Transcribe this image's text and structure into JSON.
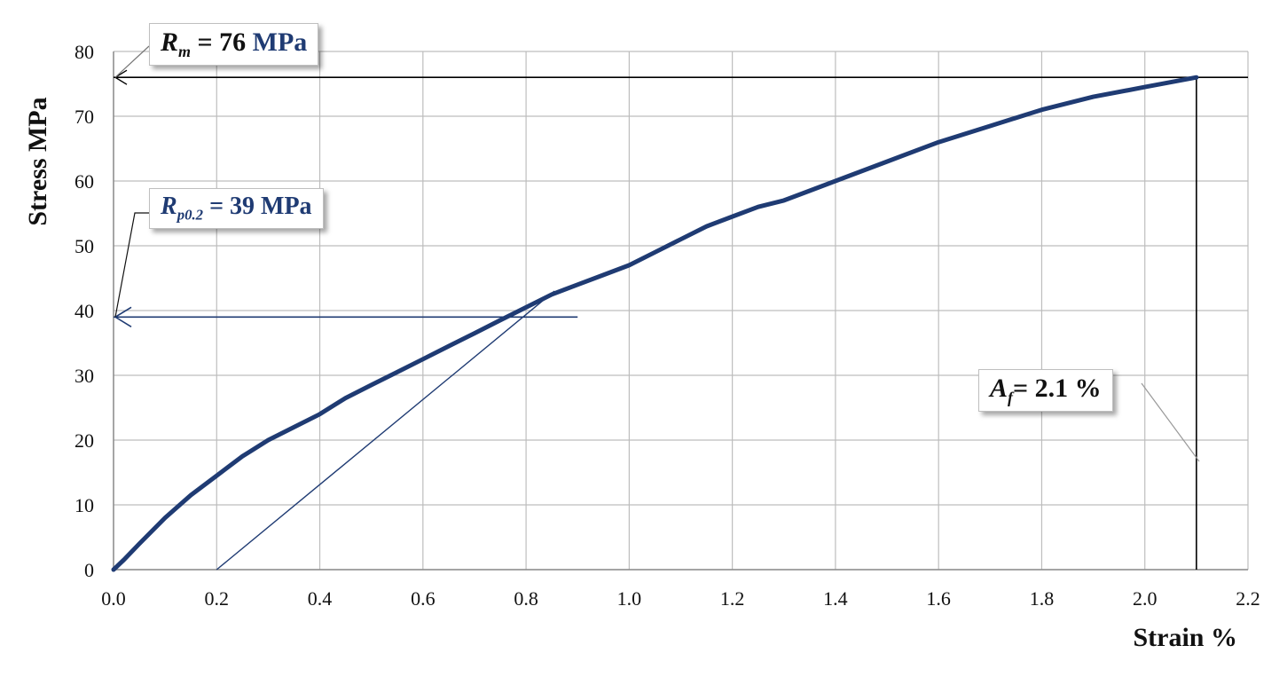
{
  "chart_data": {
    "type": "line",
    "xlabel": "Strain %",
    "ylabel": "Stress MPa",
    "xlim": [
      0,
      2.2
    ],
    "ylim": [
      0,
      80
    ],
    "x_ticks": [
      "0.0",
      "0.2",
      "0.4",
      "0.6",
      "0.8",
      "1.0",
      "1.2",
      "1.4",
      "1.6",
      "1.8",
      "2.0",
      "2.2"
    ],
    "y_ticks": [
      "0",
      "10",
      "20",
      "30",
      "40",
      "50",
      "60",
      "70",
      "80"
    ],
    "grid": true,
    "series": [
      {
        "color": "#1f3b73",
        "x": [
          0,
          0.02,
          0.05,
          0.1,
          0.15,
          0.2,
          0.25,
          0.3,
          0.35,
          0.4,
          0.45,
          0.5,
          0.55,
          0.6,
          0.65,
          0.7,
          0.75,
          0.8,
          0.85,
          0.9,
          0.95,
          1.0,
          1.05,
          1.1,
          1.15,
          1.2,
          1.25,
          1.3,
          1.35,
          1.4,
          1.5,
          1.6,
          1.7,
          1.8,
          1.9,
          2.0,
          2.1
        ],
        "y": [
          0,
          1.5,
          4,
          8,
          11.5,
          14.5,
          17.5,
          20,
          22,
          24,
          26.5,
          28.5,
          30.5,
          32.5,
          34.5,
          36.5,
          38.5,
          40.5,
          42.5,
          44,
          45.5,
          47,
          49,
          51,
          53,
          54.5,
          56,
          57,
          58.5,
          60,
          63,
          66,
          68.5,
          71,
          73,
          74.5,
          76
        ]
      }
    ],
    "offset_line": {
      "x": [
        0.2,
        0.855
      ],
      "y": [
        0,
        43
      ],
      "color": "#1f3b73"
    },
    "annotations": {
      "rm": {
        "symbol": "R",
        "sub": "m",
        "text": " = 76 ",
        "unit": "MPa",
        "y": 76,
        "x_end": 2.1
      },
      "rp": {
        "symbol": "R",
        "sub": "p0.2",
        "text": " = 39 MPa",
        "y": 39,
        "x_end": 0.9
      },
      "af": {
        "symbol": "A",
        "sub": "f",
        "text": "= 2.1 %",
        "x": 2.1
      }
    }
  }
}
